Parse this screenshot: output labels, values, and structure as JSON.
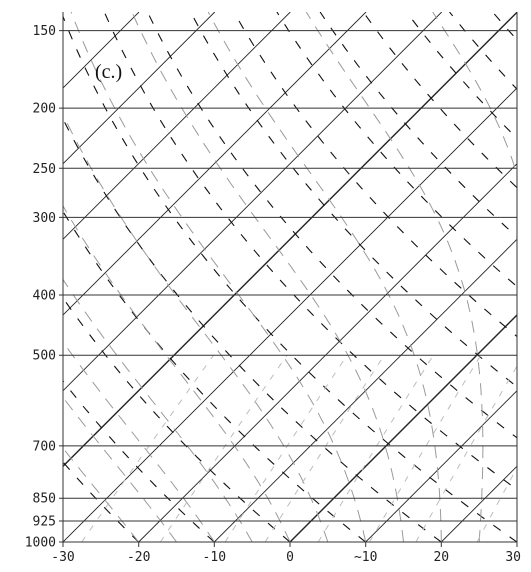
{
  "chart_data": {
    "type": "skew-t",
    "panel_label": "(c.)",
    "y_axis": {
      "scale": "log-pressure",
      "range": [
        1000,
        140
      ],
      "ticks": [
        150,
        200,
        250,
        300,
        400,
        500,
        700,
        850,
        925,
        1000
      ],
      "tick_labels": [
        "150",
        "200",
        "250",
        "300",
        "400",
        "500",
        "700",
        "850",
        "925",
        "1000"
      ]
    },
    "x_axis": {
      "range": [
        -30,
        30
      ],
      "ticks": [
        -30,
        -20,
        -10,
        0,
        10,
        20,
        30
      ],
      "tick_labels": [
        "-30",
        "-20",
        "-10",
        "0",
        "~10",
        "20",
        "30"
      ]
    },
    "isotherms": {
      "style": "solid",
      "color": "#222222"
    },
    "dry_adiabats": {
      "style": "dashed",
      "color": "#111111"
    },
    "moist_adiabats": {
      "style": "dashed",
      "color": "#9a9a9a"
    },
    "mixing_ratio": {
      "style": "dashed",
      "color": "#bdbdbd"
    },
    "colors": {
      "isobar": "#333333",
      "background": "#ffffff"
    }
  }
}
